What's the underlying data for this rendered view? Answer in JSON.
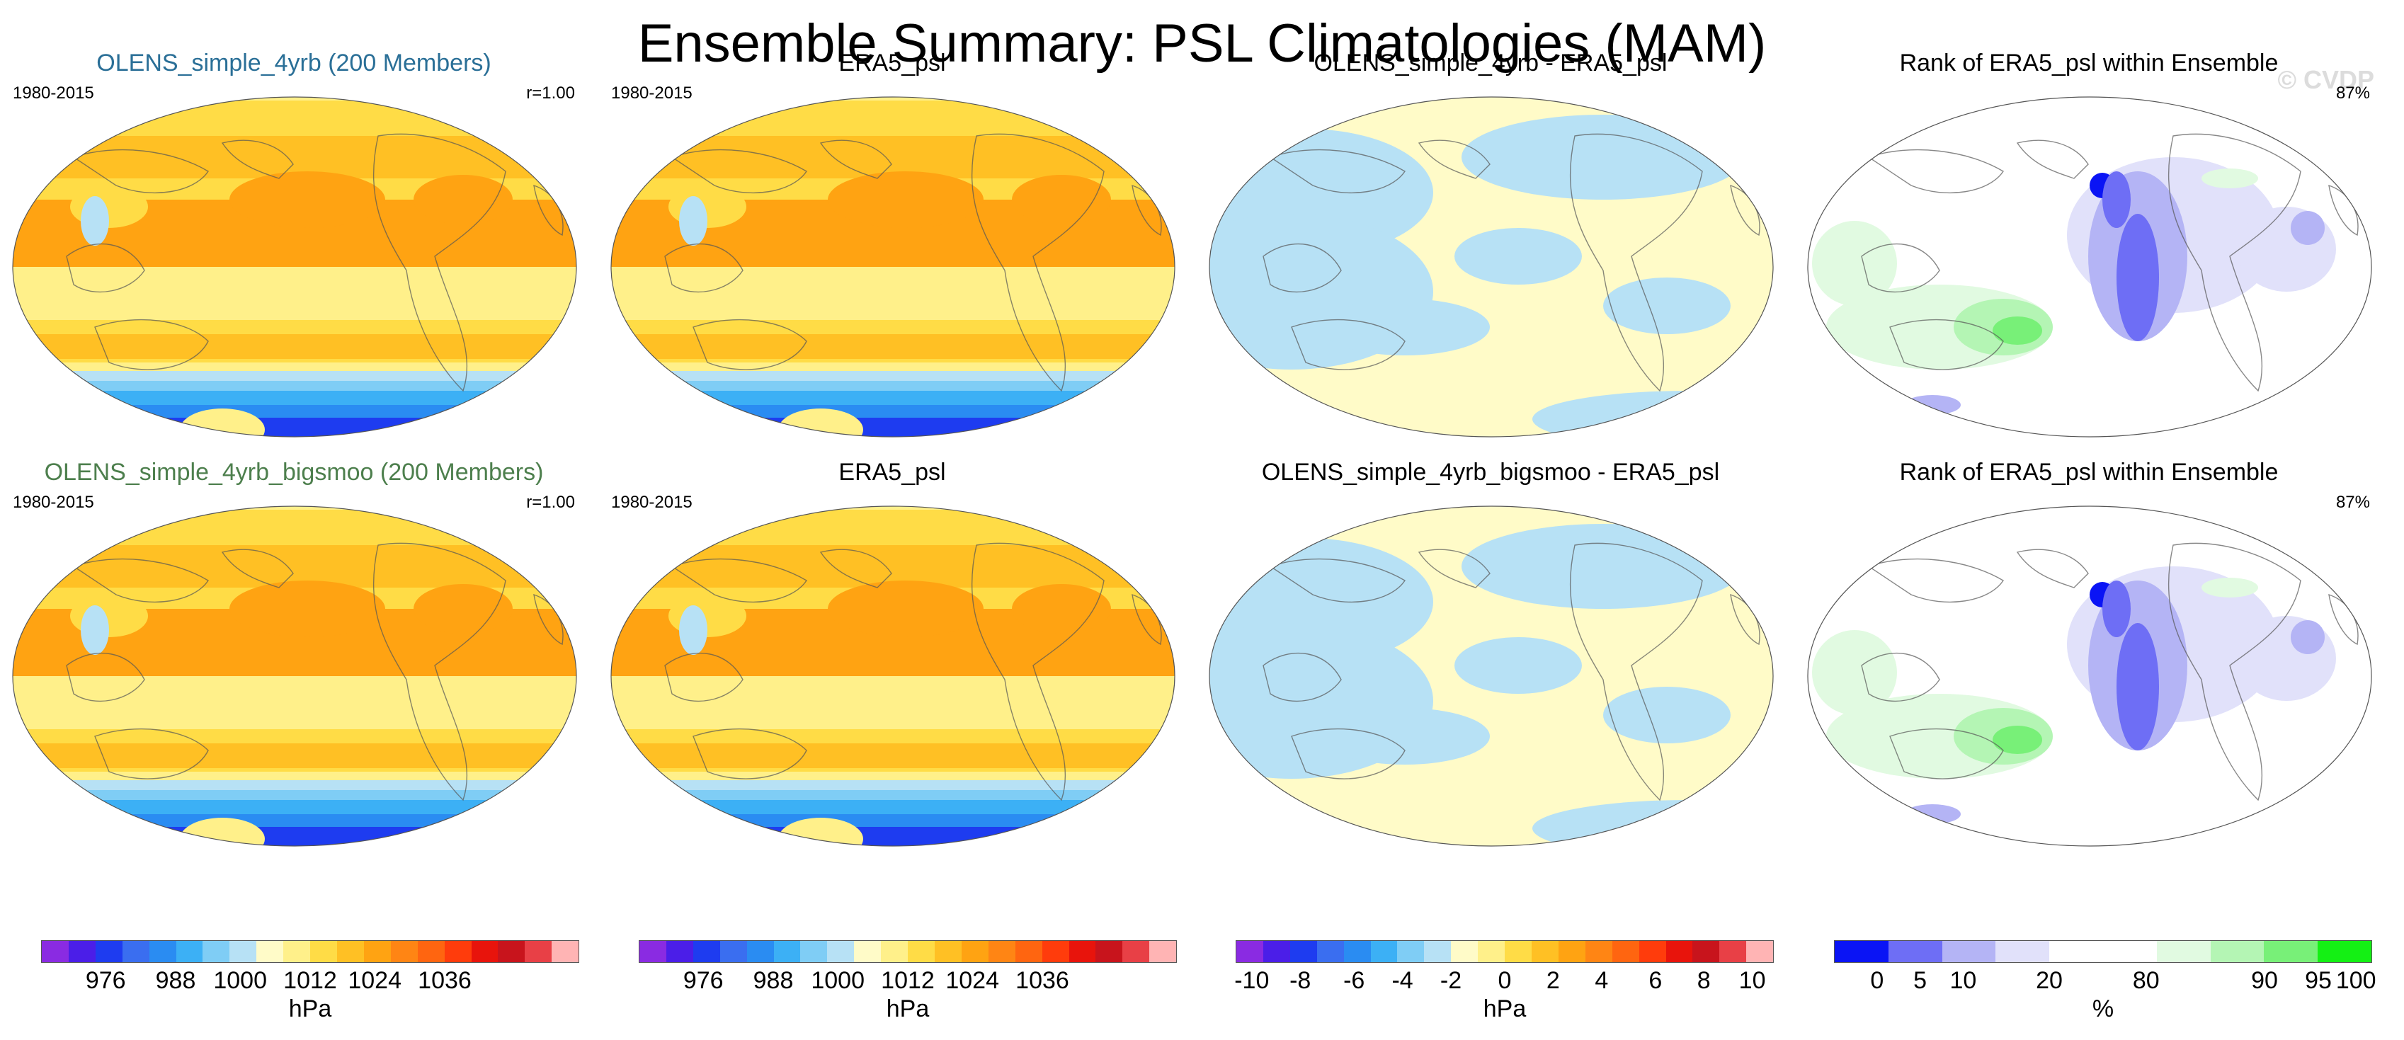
{
  "title": "Ensemble Summary: PSL Climatologies (MAM)",
  "watermark": "© CVDP",
  "panels": [
    {
      "title": "OLENS_simple_4yrb (200 Members)",
      "left": "1980-2015",
      "right": "r=1.00",
      "kind": "clim",
      "title_color": "blue"
    },
    {
      "title": "ERA5_psl",
      "left": "1980-2015",
      "right": "",
      "kind": "clim"
    },
    {
      "title": "OLENS_simple_4yrb - ERA5_psl",
      "left": "",
      "right": "",
      "kind": "diff"
    },
    {
      "title": "Rank of ERA5_psl within Ensemble",
      "left": "",
      "right": "87%",
      "kind": "rank"
    },
    {
      "title": "OLENS_simple_4yrb_bigsmoo (200 Members)",
      "left": "1980-2015",
      "right": "r=1.00",
      "kind": "clim",
      "title_color": "green"
    },
    {
      "title": "ERA5_psl",
      "left": "1980-2015",
      "right": "",
      "kind": "clim"
    },
    {
      "title": "OLENS_simple_4yrb_bigsmoo - ERA5_psl",
      "left": "",
      "right": "",
      "kind": "diff"
    },
    {
      "title": "Rank of ERA5_psl within Ensemble",
      "left": "",
      "right": "87%",
      "kind": "rank"
    }
  ],
  "colorbars": [
    {
      "unit": "hPa",
      "ticks": [
        "976",
        "988",
        "1000",
        "1012",
        "1024",
        "1036"
      ],
      "colors": [
        "#8a2be2",
        "#4b1ee8",
        "#1e3cf0",
        "#3a6ef0",
        "#2a8cf2",
        "#3cb0f5",
        "#7fcdf5",
        "#b7e1f5",
        "#fffbc8",
        "#fff08a",
        "#ffdc46",
        "#ffc024",
        "#ffa312",
        "#ff8514",
        "#ff6510",
        "#ff3c0c",
        "#e8140c",
        "#c8141c",
        "#e84046",
        "#ffb4b4"
      ]
    },
    {
      "unit": "hPa",
      "ticks": [
        "976",
        "988",
        "1000",
        "1012",
        "1024",
        "1036"
      ],
      "colors": [
        "#8a2be2",
        "#4b1ee8",
        "#1e3cf0",
        "#3a6ef0",
        "#2a8cf2",
        "#3cb0f5",
        "#7fcdf5",
        "#b7e1f5",
        "#fffbc8",
        "#fff08a",
        "#ffdc46",
        "#ffc024",
        "#ffa312",
        "#ff8514",
        "#ff6510",
        "#ff3c0c",
        "#e8140c",
        "#c8141c",
        "#e84046",
        "#ffb4b4"
      ]
    },
    {
      "unit": "hPa",
      "ticks": [
        "-10",
        "-8",
        "-6",
        "-4",
        "-2",
        "0",
        "2",
        "4",
        "6",
        "8",
        "10"
      ],
      "colors": [
        "#8a2be2",
        "#4b1ee8",
        "#1e3cf0",
        "#3a6ef0",
        "#2a8cf2",
        "#3cb0f5",
        "#7fcdf5",
        "#b7e1f5",
        "#fffbc8",
        "#fff08a",
        "#ffdc46",
        "#ffc024",
        "#ffa312",
        "#ff8514",
        "#ff6510",
        "#ff3c0c",
        "#e8140c",
        "#c8141c",
        "#e84046",
        "#ffb4b4"
      ]
    },
    {
      "unit": "%",
      "ticks": [
        "0",
        "5",
        "10",
        "20",
        "80",
        "90",
        "95",
        "100"
      ],
      "colors": [
        "#0a14f5",
        "#6e6ef5",
        "#b4b4f5",
        "#e1e1fa",
        "#ffffff",
        "#ffffff",
        "#e1fae1",
        "#b4f5b4",
        "#78f078",
        "#14f014"
      ]
    }
  ]
}
